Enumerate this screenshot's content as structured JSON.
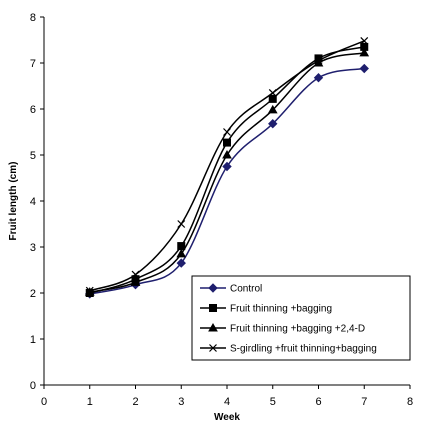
{
  "chart_data": {
    "type": "line",
    "title": "",
    "xlabel": "Week",
    "ylabel": "Fruit length (cm)",
    "xlim": [
      0,
      8
    ],
    "ylim": [
      0,
      8
    ],
    "xticks": [
      0,
      1,
      2,
      3,
      4,
      5,
      6,
      7,
      8
    ],
    "yticks": [
      0,
      1,
      2,
      3,
      4,
      5,
      6,
      7,
      8
    ],
    "grid": false,
    "legend_position": "bottom-right",
    "x": [
      1,
      2,
      3,
      4,
      5,
      6,
      7
    ],
    "series": [
      {
        "name": "Control",
        "marker": "diamond",
        "values": [
          1.98,
          2.18,
          2.65,
          4.75,
          5.68,
          6.68,
          6.88
        ]
      },
      {
        "name": "Fruit thinning +bagging",
        "marker": "square",
        "values": [
          2.0,
          2.3,
          3.02,
          5.27,
          6.22,
          7.1,
          7.35
        ]
      },
      {
        "name": "Fruit thinning +bagging +2,4-D",
        "marker": "triangle",
        "values": [
          2.02,
          2.23,
          2.85,
          5.0,
          5.98,
          7.0,
          7.22
        ]
      },
      {
        "name": "S-girdling +fruit thinning+bagging",
        "marker": "x",
        "values": [
          2.05,
          2.4,
          3.5,
          5.5,
          6.35,
          7.05,
          7.48
        ]
      }
    ]
  }
}
